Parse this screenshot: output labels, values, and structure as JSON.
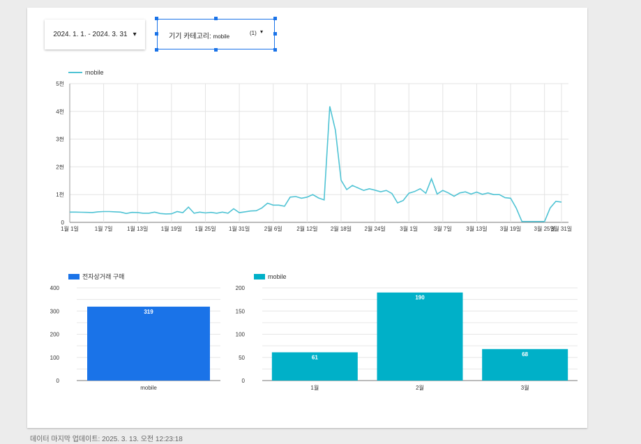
{
  "controls": {
    "date_range": "2024. 1. 1. - 2024. 3. 31",
    "filter_label": "기기 카테고리",
    "filter_value": "mobile",
    "filter_count": "(1)"
  },
  "footer": {
    "updated": "데이터 마지막 업데이트: 2025. 3. 13. 오전 12:23:18"
  },
  "colors": {
    "line": "#4fc3d4",
    "bar_blue": "#1a73e8",
    "bar_teal": "#00b0c8"
  },
  "chart_data": [
    {
      "type": "line",
      "legend": "top-left",
      "grid": true,
      "series": [
        {
          "name": "mobile",
          "values": [
            370,
            370,
            365,
            360,
            355,
            380,
            390,
            390,
            380,
            370,
            320,
            360,
            355,
            330,
            330,
            370,
            320,
            305,
            310,
            390,
            350,
            550,
            330,
            370,
            340,
            360,
            330,
            370,
            330,
            490,
            350,
            380,
            410,
            420,
            520,
            690,
            620,
            620,
            580,
            910,
            930,
            870,
            910,
            1000,
            880,
            810,
            4180,
            3320,
            1520,
            1180,
            1330,
            1240,
            1150,
            1210,
            1160,
            1100,
            1150,
            1040,
            700,
            790,
            1050,
            1110,
            1210,
            1050,
            1570,
            1020,
            1150,
            1060,
            940,
            1060,
            1100,
            1020,
            1090,
            1010,
            1060,
            1000,
            1000,
            890,
            870,
            510,
            30,
            30,
            30,
            30,
            30,
            520,
            760,
            730
          ]
        }
      ],
      "x_ticks": [
        "1월 1일",
        "1월 7일",
        "1월 13일",
        "1월 19일",
        "1월 25일",
        "1월 31일",
        "2월 6일",
        "2월 12일",
        "2월 18일",
        "2월 24일",
        "3월 1일",
        "3월 7일",
        "3월 13일",
        "3월 19일",
        "3월 25일",
        "3월 31일"
      ],
      "y_ticks": [
        "0",
        "1천",
        "2천",
        "3천",
        "4천",
        "5천"
      ],
      "ylim": [
        0,
        5000
      ]
    },
    {
      "type": "bar",
      "legend": "top-left",
      "grid": true,
      "series": [
        {
          "name": "전자상거래 구매",
          "values": [
            319
          ]
        }
      ],
      "categories": [
        "mobile"
      ],
      "y_ticks": [
        "0",
        "100",
        "200",
        "300",
        "400"
      ],
      "ylim": [
        0,
        400
      ]
    },
    {
      "type": "bar",
      "legend": "top-left",
      "grid": true,
      "series": [
        {
          "name": "mobile",
          "values": [
            61,
            190,
            68
          ]
        }
      ],
      "categories": [
        "1월",
        "2월",
        "3월"
      ],
      "y_ticks": [
        "0",
        "50",
        "100",
        "150",
        "200"
      ],
      "ylim": [
        0,
        200
      ]
    }
  ]
}
